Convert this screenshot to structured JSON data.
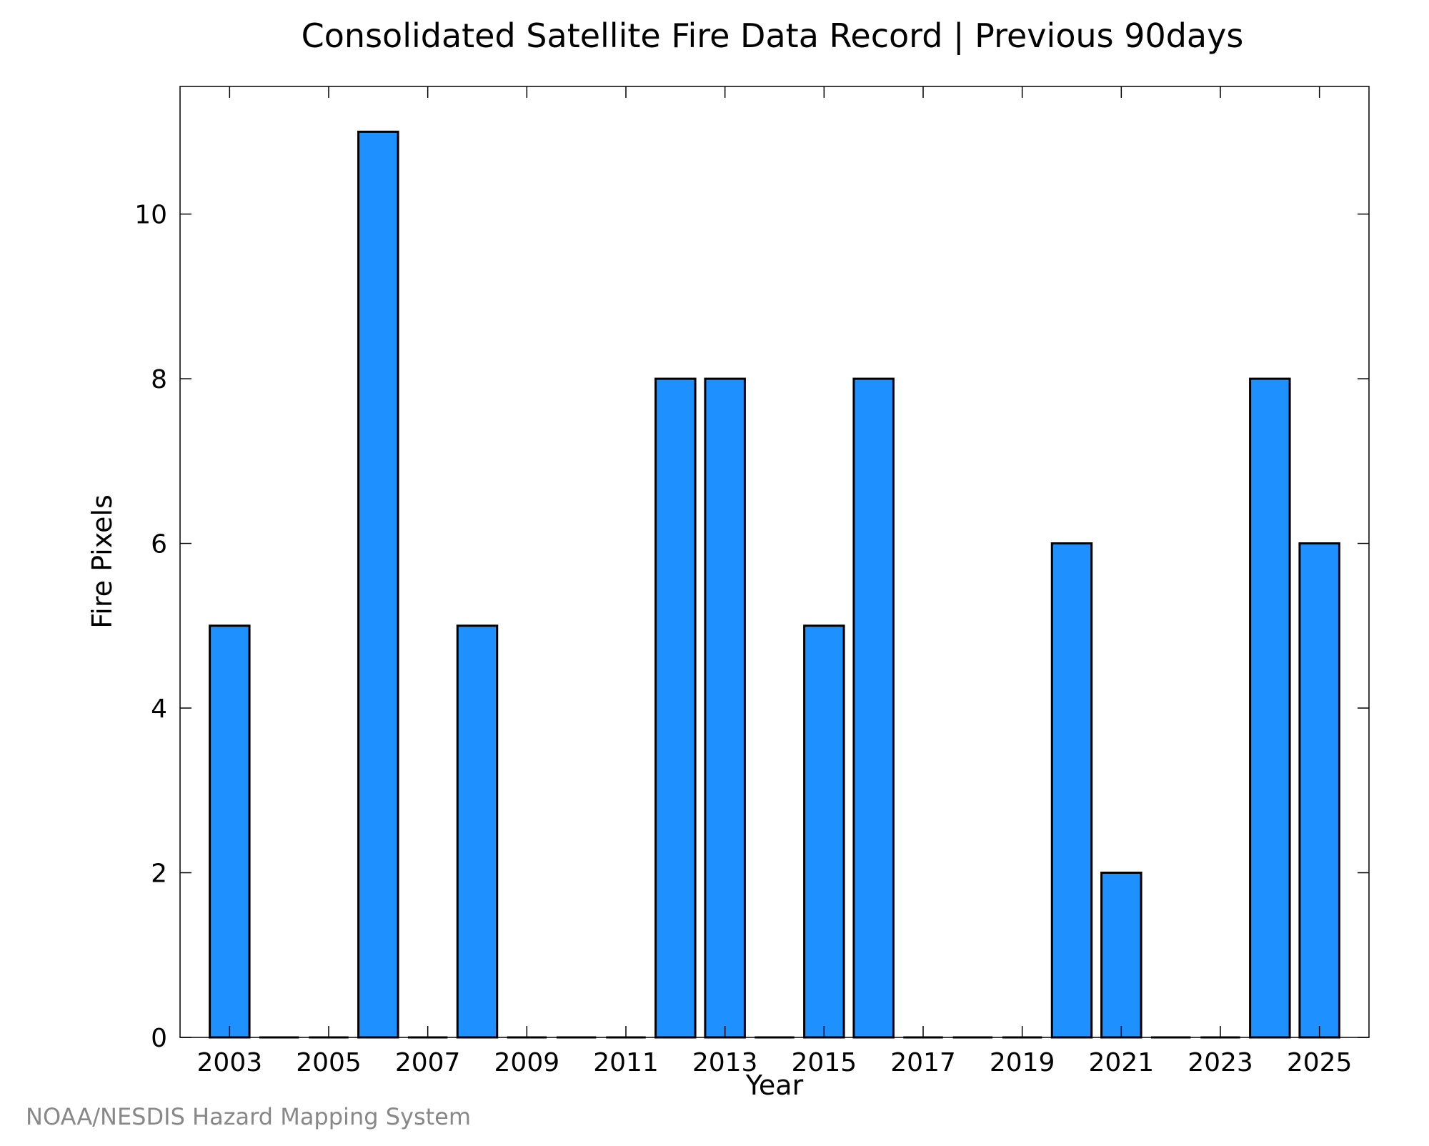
{
  "chart_data": {
    "type": "bar",
    "title": "Consolidated Satellite Fire Data Record | Previous 90days",
    "xlabel": "Year",
    "ylabel": "Fire Pixels",
    "x": [
      2003,
      2004,
      2005,
      2006,
      2007,
      2008,
      2009,
      2010,
      2011,
      2012,
      2013,
      2014,
      2015,
      2016,
      2017,
      2018,
      2019,
      2020,
      2021,
      2022,
      2023,
      2024,
      2025
    ],
    "values": [
      5,
      0,
      0,
      11,
      0,
      5,
      0,
      0,
      0,
      8,
      8,
      0,
      5,
      8,
      0,
      0,
      0,
      6,
      2,
      0,
      0,
      8,
      6
    ],
    "xlim": [
      2002,
      2026
    ],
    "ylim": [
      0,
      11.55
    ],
    "xticks": [
      2003,
      2005,
      2007,
      2009,
      2011,
      2013,
      2015,
      2017,
      2019,
      2021,
      2023,
      2025
    ],
    "yticks": [
      0,
      2,
      4,
      6,
      8,
      10
    ],
    "grid": false,
    "legend": "none",
    "bar_color": "#1e90ff",
    "edge_color": "#000000"
  },
  "credit": "NOAA/NESDIS Hazard Mapping System"
}
